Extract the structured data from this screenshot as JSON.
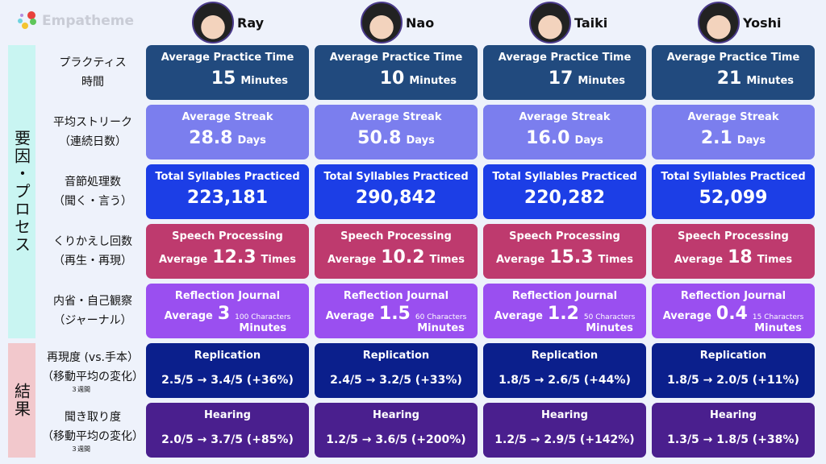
{
  "app": {
    "logo_text": "Empatheme"
  },
  "people": [
    {
      "name": "Ray"
    },
    {
      "name": "Nao"
    },
    {
      "name": "Taiki"
    },
    {
      "name": "Yoshi"
    }
  ],
  "sections": {
    "factors": "要因・プロセス",
    "results": "結果"
  },
  "row_labels": [
    {
      "l1": "プラクティス",
      "l2": "時間"
    },
    {
      "l1": "平均ストリーク",
      "l2": "（連続日数）"
    },
    {
      "l1": "音節処理数",
      "l2": "（聞く・言う）"
    },
    {
      "l1": "くりかえし回数",
      "l2": "（再生・再現）"
    },
    {
      "l1": "内省・自己観察",
      "l2": "（ジャーナル）"
    },
    {
      "l1": "再現度 (vs.手本）",
      "l2": "（移動平均の変化）",
      "sub": "３週間"
    },
    {
      "l1": "聞き取り度",
      "l2": "（移動平均の変化）",
      "sub": "３週間"
    }
  ],
  "titles": [
    "Average Practice Time",
    "Average Streak",
    "Total Syllables Practiced",
    "Speech Processing",
    "Reflection Journal",
    "Replication",
    "Hearing"
  ],
  "common": {
    "minutes": "Minutes",
    "days": "Days",
    "times": "Times",
    "average": "Average"
  },
  "colors": [
    "#214a7e",
    "#7b7eee",
    "#1c3ee6",
    "#be3a6e",
    "#9a4ff0",
    "#0b1f8c",
    "#4a1f8e"
  ],
  "practice_time": [
    "15",
    "10",
    "17",
    "21"
  ],
  "streak": [
    "28.8",
    "50.8",
    "16.0",
    "2.1"
  ],
  "syllables": [
    "223,181",
    "290,842",
    "220,282",
    "52,099"
  ],
  "speech": [
    "12.3",
    "10.2",
    "15.3",
    "18"
  ],
  "journal": [
    {
      "v": "3",
      "c": "100 Characters"
    },
    {
      "v": "1.5",
      "c": "60 Characters"
    },
    {
      "v": "1.2",
      "c": "50 Characters"
    },
    {
      "v": "0.4",
      "c": "15 Characters"
    }
  ],
  "replication": [
    "2.5/5 → 3.4/5 (+36%)",
    "2.4/5 → 3.2/5 (+33%)",
    "1.8/5 → 2.6/5 (+44%)",
    "1.8/5 → 2.0/5 (+11%)"
  ],
  "hearing": [
    "2.0/5 → 3.7/5 (+85%)",
    "1.2/5 → 3.6/5 (+200%)",
    "1.2/5 → 2.9/5 (+142%)",
    "1.3/5 → 1.8/5 (+38%)"
  ]
}
